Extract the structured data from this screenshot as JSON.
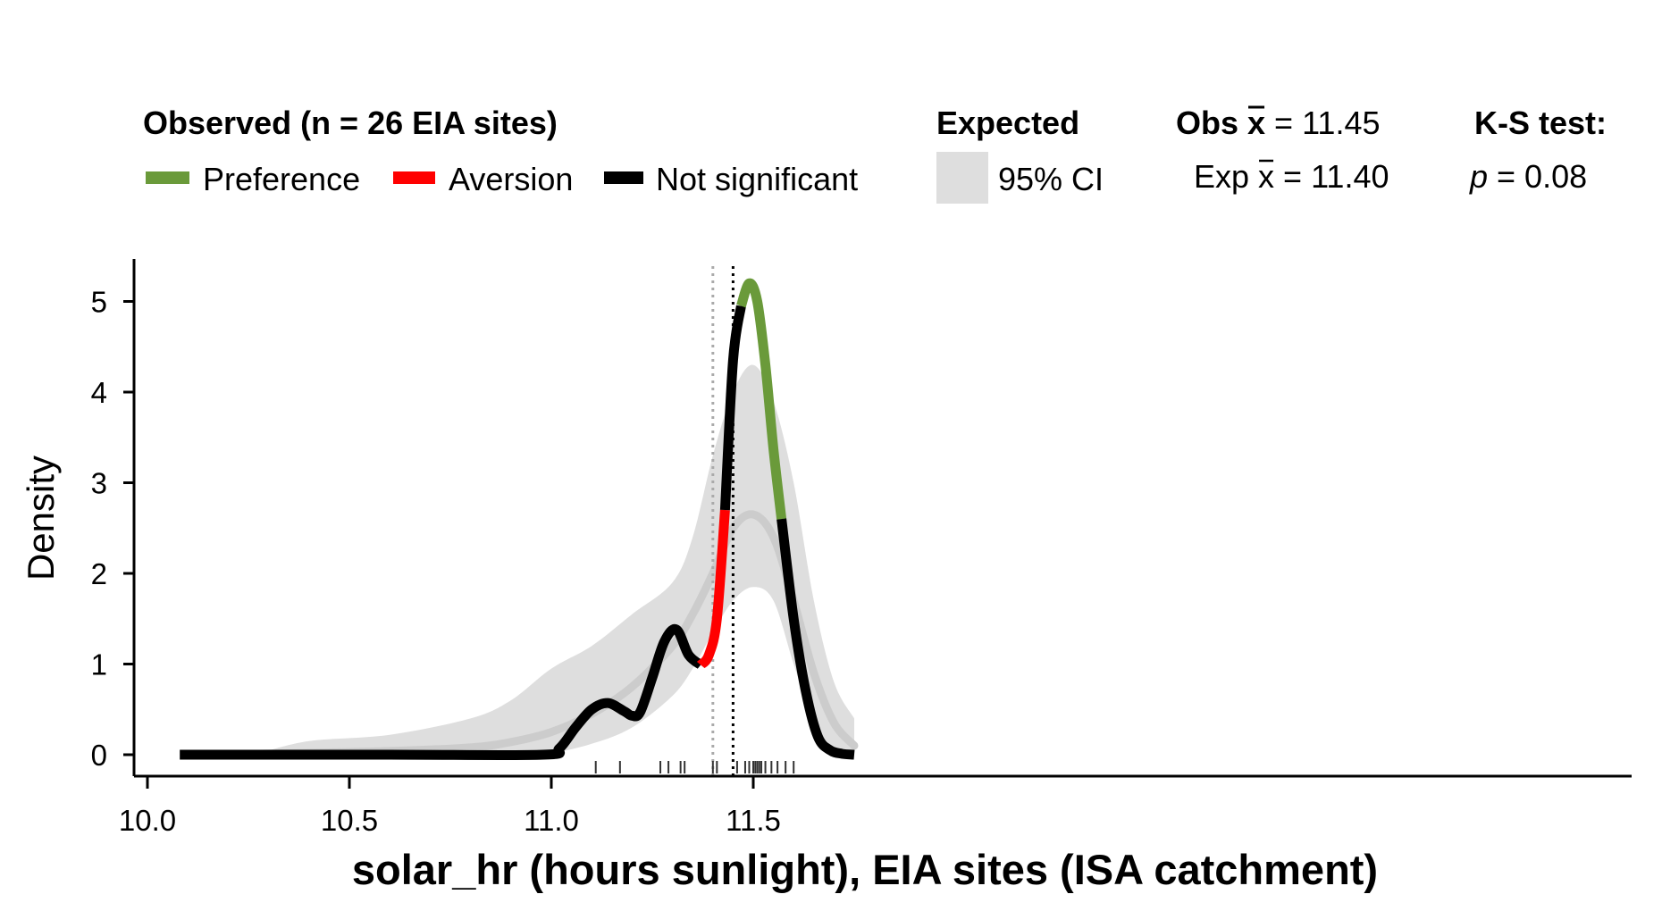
{
  "legend": {
    "observed_title": "Observed (n = 26 EIA sites)",
    "preference_label": "Preference",
    "aversion_label": "Aversion",
    "not_significant_label": "Not significant",
    "expected_title": "Expected",
    "ci_label": "95% CI",
    "obs_mean_prefix": "Obs ",
    "obs_mean_value": " = 11.45",
    "exp_mean_prefix": "Exp ",
    "exp_mean_value": " = 11.40",
    "ks_title": "K-S test:",
    "ks_p_symbol": "p",
    "ks_p_value": " = 0.08"
  },
  "colors": {
    "preference": "#6a9a3a",
    "aversion": "#ff0000",
    "not_significant": "#000000",
    "ci_band": "#dedede",
    "expected_line": "#cccccc"
  },
  "chart_data": {
    "type": "line",
    "xlabel": "solar_hr (hours sunlight), EIA sites (ISA catchment)",
    "ylabel": "Density",
    "xlim": [
      10.0,
      11.85
    ],
    "ylim": [
      0,
      5.45
    ],
    "x_ticks": [
      10.0,
      10.5,
      11.0,
      11.5
    ],
    "x_tick_labels": [
      "10.0",
      "10.5",
      "11.0",
      "11.5"
    ],
    "y_ticks": [
      0,
      1,
      2,
      3,
      4,
      5
    ],
    "y_tick_labels": [
      "0",
      "1",
      "2",
      "3",
      "4",
      "5"
    ],
    "observed_mean": 11.45,
    "expected_mean": 11.4,
    "ks_p": 0.08,
    "n_sites": 26,
    "observed_density": {
      "x": [
        10.08,
        10.6,
        10.98,
        11.02,
        11.06,
        11.1,
        11.14,
        11.18,
        11.2,
        11.22,
        11.25,
        11.28,
        11.31,
        11.34,
        11.37,
        11.39,
        11.41,
        11.43,
        11.45,
        11.47,
        11.49,
        11.51,
        11.53,
        11.55,
        11.57,
        11.6,
        11.63,
        11.66,
        11.69,
        11.72,
        11.75
      ],
      "y": [
        0,
        0,
        0,
        0.07,
        0.3,
        0.5,
        0.57,
        0.48,
        0.43,
        0.47,
        0.85,
        1.25,
        1.38,
        1.1,
        0.99,
        1.1,
        1.5,
        2.7,
        4.35,
        4.95,
        5.2,
        5.0,
        4.3,
        3.37,
        2.6,
        1.5,
        0.7,
        0.2,
        0.05,
        0.01,
        0
      ],
      "segments": [
        {
          "status": "Not significant",
          "x_range": [
            10.08,
            11.37
          ]
        },
        {
          "status": "Aversion",
          "x_range": [
            11.37,
            11.43
          ]
        },
        {
          "status": "Not significant",
          "x_range": [
            11.43,
            11.47
          ]
        },
        {
          "status": "Preference",
          "x_range": [
            11.47,
            11.57
          ]
        },
        {
          "status": "Not significant",
          "x_range": [
            11.57,
            11.75
          ]
        }
      ]
    },
    "expected_density": {
      "x": [
        10.28,
        10.4,
        10.6,
        10.8,
        10.9,
        11.0,
        11.1,
        11.2,
        11.3,
        11.35,
        11.4,
        11.45,
        11.5,
        11.55,
        11.6,
        11.65,
        11.7,
        11.75
      ],
      "mean": [
        0.01,
        0.02,
        0.04,
        0.08,
        0.14,
        0.25,
        0.45,
        0.75,
        1.2,
        1.55,
        2.0,
        2.5,
        2.65,
        2.4,
        1.7,
        0.9,
        0.35,
        0.1
      ],
      "upper": [
        0.02,
        0.15,
        0.22,
        0.4,
        0.6,
        0.95,
        1.2,
        1.55,
        1.9,
        2.4,
        3.3,
        4.0,
        4.3,
        3.9,
        3.0,
        1.7,
        0.8,
        0.4
      ],
      "lower": [
        0.0,
        0.0,
        0.0,
        0.0,
        0.0,
        0.02,
        0.12,
        0.3,
        0.65,
        0.95,
        1.35,
        1.7,
        1.85,
        1.7,
        1.0,
        0.35,
        0.08,
        0.01
      ]
    },
    "rug_x": [
      11.11,
      11.17,
      11.27,
      11.29,
      11.32,
      11.33,
      11.4,
      11.41,
      11.46,
      11.48,
      11.49,
      11.5,
      11.505,
      11.51,
      11.515,
      11.52,
      11.53,
      11.545,
      11.56,
      11.58,
      11.6
    ]
  }
}
